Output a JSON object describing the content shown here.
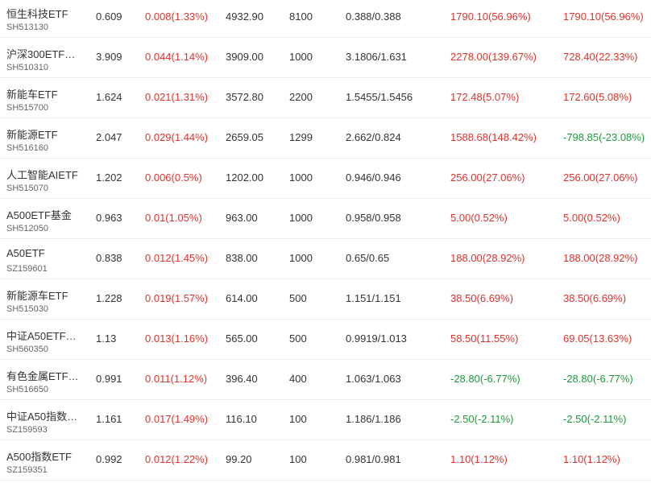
{
  "colors": {
    "up": "#e0322d",
    "down": "#1d9a3a",
    "text": "#333333",
    "subtext": "#666666",
    "divider": "#ececec"
  },
  "rows": [
    {
      "name": "恒生科技ETF",
      "code": "SH513130",
      "price": "0.609",
      "change": "0.008(1.33%)",
      "market_value": "4932.90",
      "quantity": "8100",
      "cost": "0.388/0.388",
      "profit": "1790.10(56.96%)",
      "profit_dir": "up",
      "profit2": "1790.10(56.96%)",
      "profit2_dir": "up"
    },
    {
      "name": "沪深300ETF…",
      "code": "SH510310",
      "price": "3.909",
      "change": "0.044(1.14%)",
      "market_value": "3909.00",
      "quantity": "1000",
      "cost": "3.1806/1.631",
      "profit": "2278.00(139.67%)",
      "profit_dir": "up",
      "profit2": "728.40(22.33%)",
      "profit2_dir": "up"
    },
    {
      "name": "新能车ETF",
      "code": "SH515700",
      "price": "1.624",
      "change": "0.021(1.31%)",
      "market_value": "3572.80",
      "quantity": "2200",
      "cost": "1.5455/1.5456",
      "profit": "172.48(5.07%)",
      "profit_dir": "up",
      "profit2": "172.60(5.08%)",
      "profit2_dir": "up"
    },
    {
      "name": "新能源ETF",
      "code": "SH516160",
      "price": "2.047",
      "change": "0.029(1.44%)",
      "market_value": "2659.05",
      "quantity": "1299",
      "cost": "2.662/0.824",
      "profit": "1588.68(148.42%)",
      "profit_dir": "up",
      "profit2": "-798.85(-23.08%)",
      "profit2_dir": "down"
    },
    {
      "name": "人工智能AIETF",
      "code": "SH515070",
      "price": "1.202",
      "change": "0.006(0.5%)",
      "market_value": "1202.00",
      "quantity": "1000",
      "cost": "0.946/0.946",
      "profit": "256.00(27.06%)",
      "profit_dir": "up",
      "profit2": "256.00(27.06%)",
      "profit2_dir": "up"
    },
    {
      "name": "A500ETF基金",
      "code": "SH512050",
      "price": "0.963",
      "change": "0.01(1.05%)",
      "market_value": "963.00",
      "quantity": "1000",
      "cost": "0.958/0.958",
      "profit": "5.00(0.52%)",
      "profit_dir": "up",
      "profit2": "5.00(0.52%)",
      "profit2_dir": "up"
    },
    {
      "name": "A50ETF",
      "code": "SZ159601",
      "price": "0.838",
      "change": "0.012(1.45%)",
      "market_value": "838.00",
      "quantity": "1000",
      "cost": "0.65/0.65",
      "profit": "188.00(28.92%)",
      "profit_dir": "up",
      "profit2": "188.00(28.92%)",
      "profit2_dir": "up"
    },
    {
      "name": "新能源车ETF",
      "code": "SH515030",
      "price": "1.228",
      "change": "0.019(1.57%)",
      "market_value": "614.00",
      "quantity": "500",
      "cost": "1.151/1.151",
      "profit": "38.50(6.69%)",
      "profit_dir": "up",
      "profit2": "38.50(6.69%)",
      "profit2_dir": "up"
    },
    {
      "name": "中证A50ETF…",
      "code": "SH560350",
      "price": "1.13",
      "change": "0.013(1.16%)",
      "market_value": "565.00",
      "quantity": "500",
      "cost": "0.9919/1.013",
      "profit": "58.50(11.55%)",
      "profit_dir": "up",
      "profit2": "69.05(13.63%)",
      "profit2_dir": "up"
    },
    {
      "name": "有色金属ETF…",
      "code": "SH516650",
      "price": "0.991",
      "change": "0.011(1.12%)",
      "market_value": "396.40",
      "quantity": "400",
      "cost": "1.063/1.063",
      "profit": "-28.80(-6.77%)",
      "profit_dir": "down",
      "profit2": "-28.80(-6.77%)",
      "profit2_dir": "down"
    },
    {
      "name": "中证A50指数…",
      "code": "SZ159593",
      "price": "1.161",
      "change": "0.017(1.49%)",
      "market_value": "116.10",
      "quantity": "100",
      "cost": "1.186/1.186",
      "profit": "-2.50(-2.11%)",
      "profit_dir": "down",
      "profit2": "-2.50(-2.11%)",
      "profit2_dir": "down"
    },
    {
      "name": "A500指数ETF",
      "code": "SZ159351",
      "price": "0.992",
      "change": "0.012(1.22%)",
      "market_value": "99.20",
      "quantity": "100",
      "cost": "0.981/0.981",
      "profit": "1.10(1.12%)",
      "profit_dir": "up",
      "profit2": "1.10(1.12%)",
      "profit2_dir": "up"
    }
  ]
}
